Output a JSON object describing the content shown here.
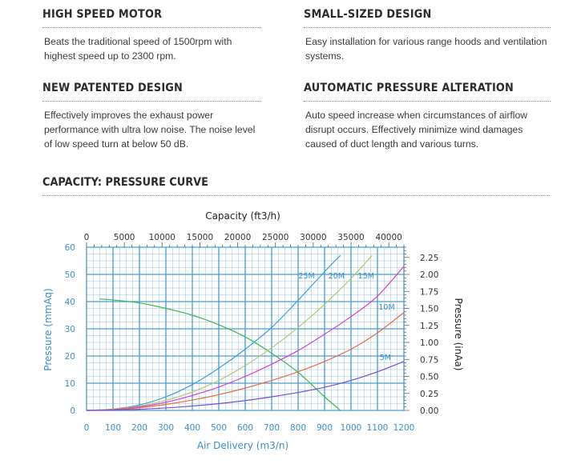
{
  "features": [
    {
      "title": "HIGH SPEED MOTOR",
      "text": "Beats the traditional speed of 1500rpm with highest speed up to 2300 rpm."
    },
    {
      "title": "SMALL-SIZED DESIGN",
      "text": "Easy installation for various range hoods and ventilation systems."
    },
    {
      "title": "NEW PATENTED DESIGN",
      "text": "Effectively improves the exhaust power performance with ultra low noise. The noise level of low speed turn at below 50 dB."
    },
    {
      "title": "AUTOMATIC PRESSURE ALTERATION",
      "text": "Auto speed increase when circumstances of airflow disrupt occurs. Effectively minimize wind damages caused of duct length and various turns."
    }
  ],
  "section_title": "CAPACITY: PRESSURE CURVE",
  "chart_data": {
    "type": "line",
    "xlabel": "Air Delivery (m3/n)",
    "ylabel": "Pressure (mmAq)",
    "x2label": "Capacity (ft3/h)",
    "y2label": "Pressure (inAa)",
    "xlim": [
      0,
      1200
    ],
    "ylim": [
      0,
      60
    ],
    "x2lim": [
      0,
      42000
    ],
    "y2lim": [
      0,
      2.4
    ],
    "x_ticks": [
      0,
      100,
      200,
      300,
      400,
      500,
      600,
      700,
      800,
      900,
      1000,
      1100,
      1200
    ],
    "y_ticks": [
      0,
      10,
      20,
      30,
      40,
      50,
      60
    ],
    "x2_ticks": [
      0,
      5000,
      10000,
      15000,
      20000,
      25000,
      30000,
      35000,
      40000
    ],
    "y2_ticks": [
      "0.00",
      "0.25",
      "0.50",
      "0.75",
      "1.00",
      "1.25",
      "1.50",
      "1.75",
      "2.00",
      "2.25"
    ],
    "grid": true,
    "series": [
      {
        "name": "",
        "color": "#3cb84a",
        "x": [
          50,
          100,
          200,
          300,
          400,
          500,
          600,
          700,
          800,
          900,
          960
        ],
        "y": [
          41,
          40.6,
          39.5,
          37.5,
          35,
          31.5,
          27,
          21,
          14,
          5,
          0
        ]
      },
      {
        "name": "25M",
        "color": "#3a9fd8",
        "x": [
          0,
          100,
          200,
          300,
          400,
          500,
          600,
          700,
          800,
          900,
          960
        ],
        "y": [
          0,
          0.5,
          2,
          5,
          9.5,
          15.5,
          22.5,
          30.5,
          40.5,
          51,
          57
        ]
      },
      {
        "name": "20M",
        "color": "#b8c46a",
        "x": [
          0,
          100,
          200,
          300,
          400,
          500,
          600,
          700,
          800,
          900,
          1000,
          1080
        ],
        "y": [
          0,
          0.4,
          1.6,
          3.7,
          6.8,
          11,
          16.5,
          23,
          30.5,
          39,
          48.5,
          57
        ]
      },
      {
        "name": "15M",
        "color": "#d63dcf",
        "x": [
          0,
          100,
          200,
          300,
          400,
          500,
          600,
          700,
          800,
          900,
          1000,
          1100,
          1200
        ],
        "y": [
          0,
          0.3,
          1.3,
          3,
          5.5,
          8.6,
          12.5,
          17,
          22,
          28,
          34.5,
          42,
          53
        ]
      },
      {
        "name": "10M",
        "color": "#e86a3c",
        "x": [
          0,
          100,
          200,
          300,
          400,
          500,
          600,
          700,
          800,
          900,
          1000,
          1100,
          1200
        ],
        "y": [
          0,
          0.25,
          1,
          2.2,
          3.8,
          5.8,
          8.2,
          11,
          14.2,
          18,
          22.5,
          28.5,
          36
        ]
      },
      {
        "name": "5M",
        "color": "#7a4ad8",
        "x": [
          0,
          100,
          200,
          300,
          400,
          500,
          600,
          700,
          800,
          900,
          1000,
          1100,
          1200
        ],
        "y": [
          0,
          0.1,
          0.4,
          0.9,
          1.6,
          2.5,
          3.6,
          5,
          6.6,
          8.5,
          11,
          14.2,
          18
        ]
      }
    ],
    "labels": [
      {
        "text": "25M",
        "x": 832,
        "y": 48.5
      },
      {
        "text": "20M",
        "x": 945,
        "y": 48.5
      },
      {
        "text": "15M",
        "x": 1057,
        "y": 48.5
      },
      {
        "text": "10M",
        "x": 1135,
        "y": 37
      },
      {
        "text": "5M",
        "x": 1130,
        "y": 18.5
      }
    ]
  }
}
